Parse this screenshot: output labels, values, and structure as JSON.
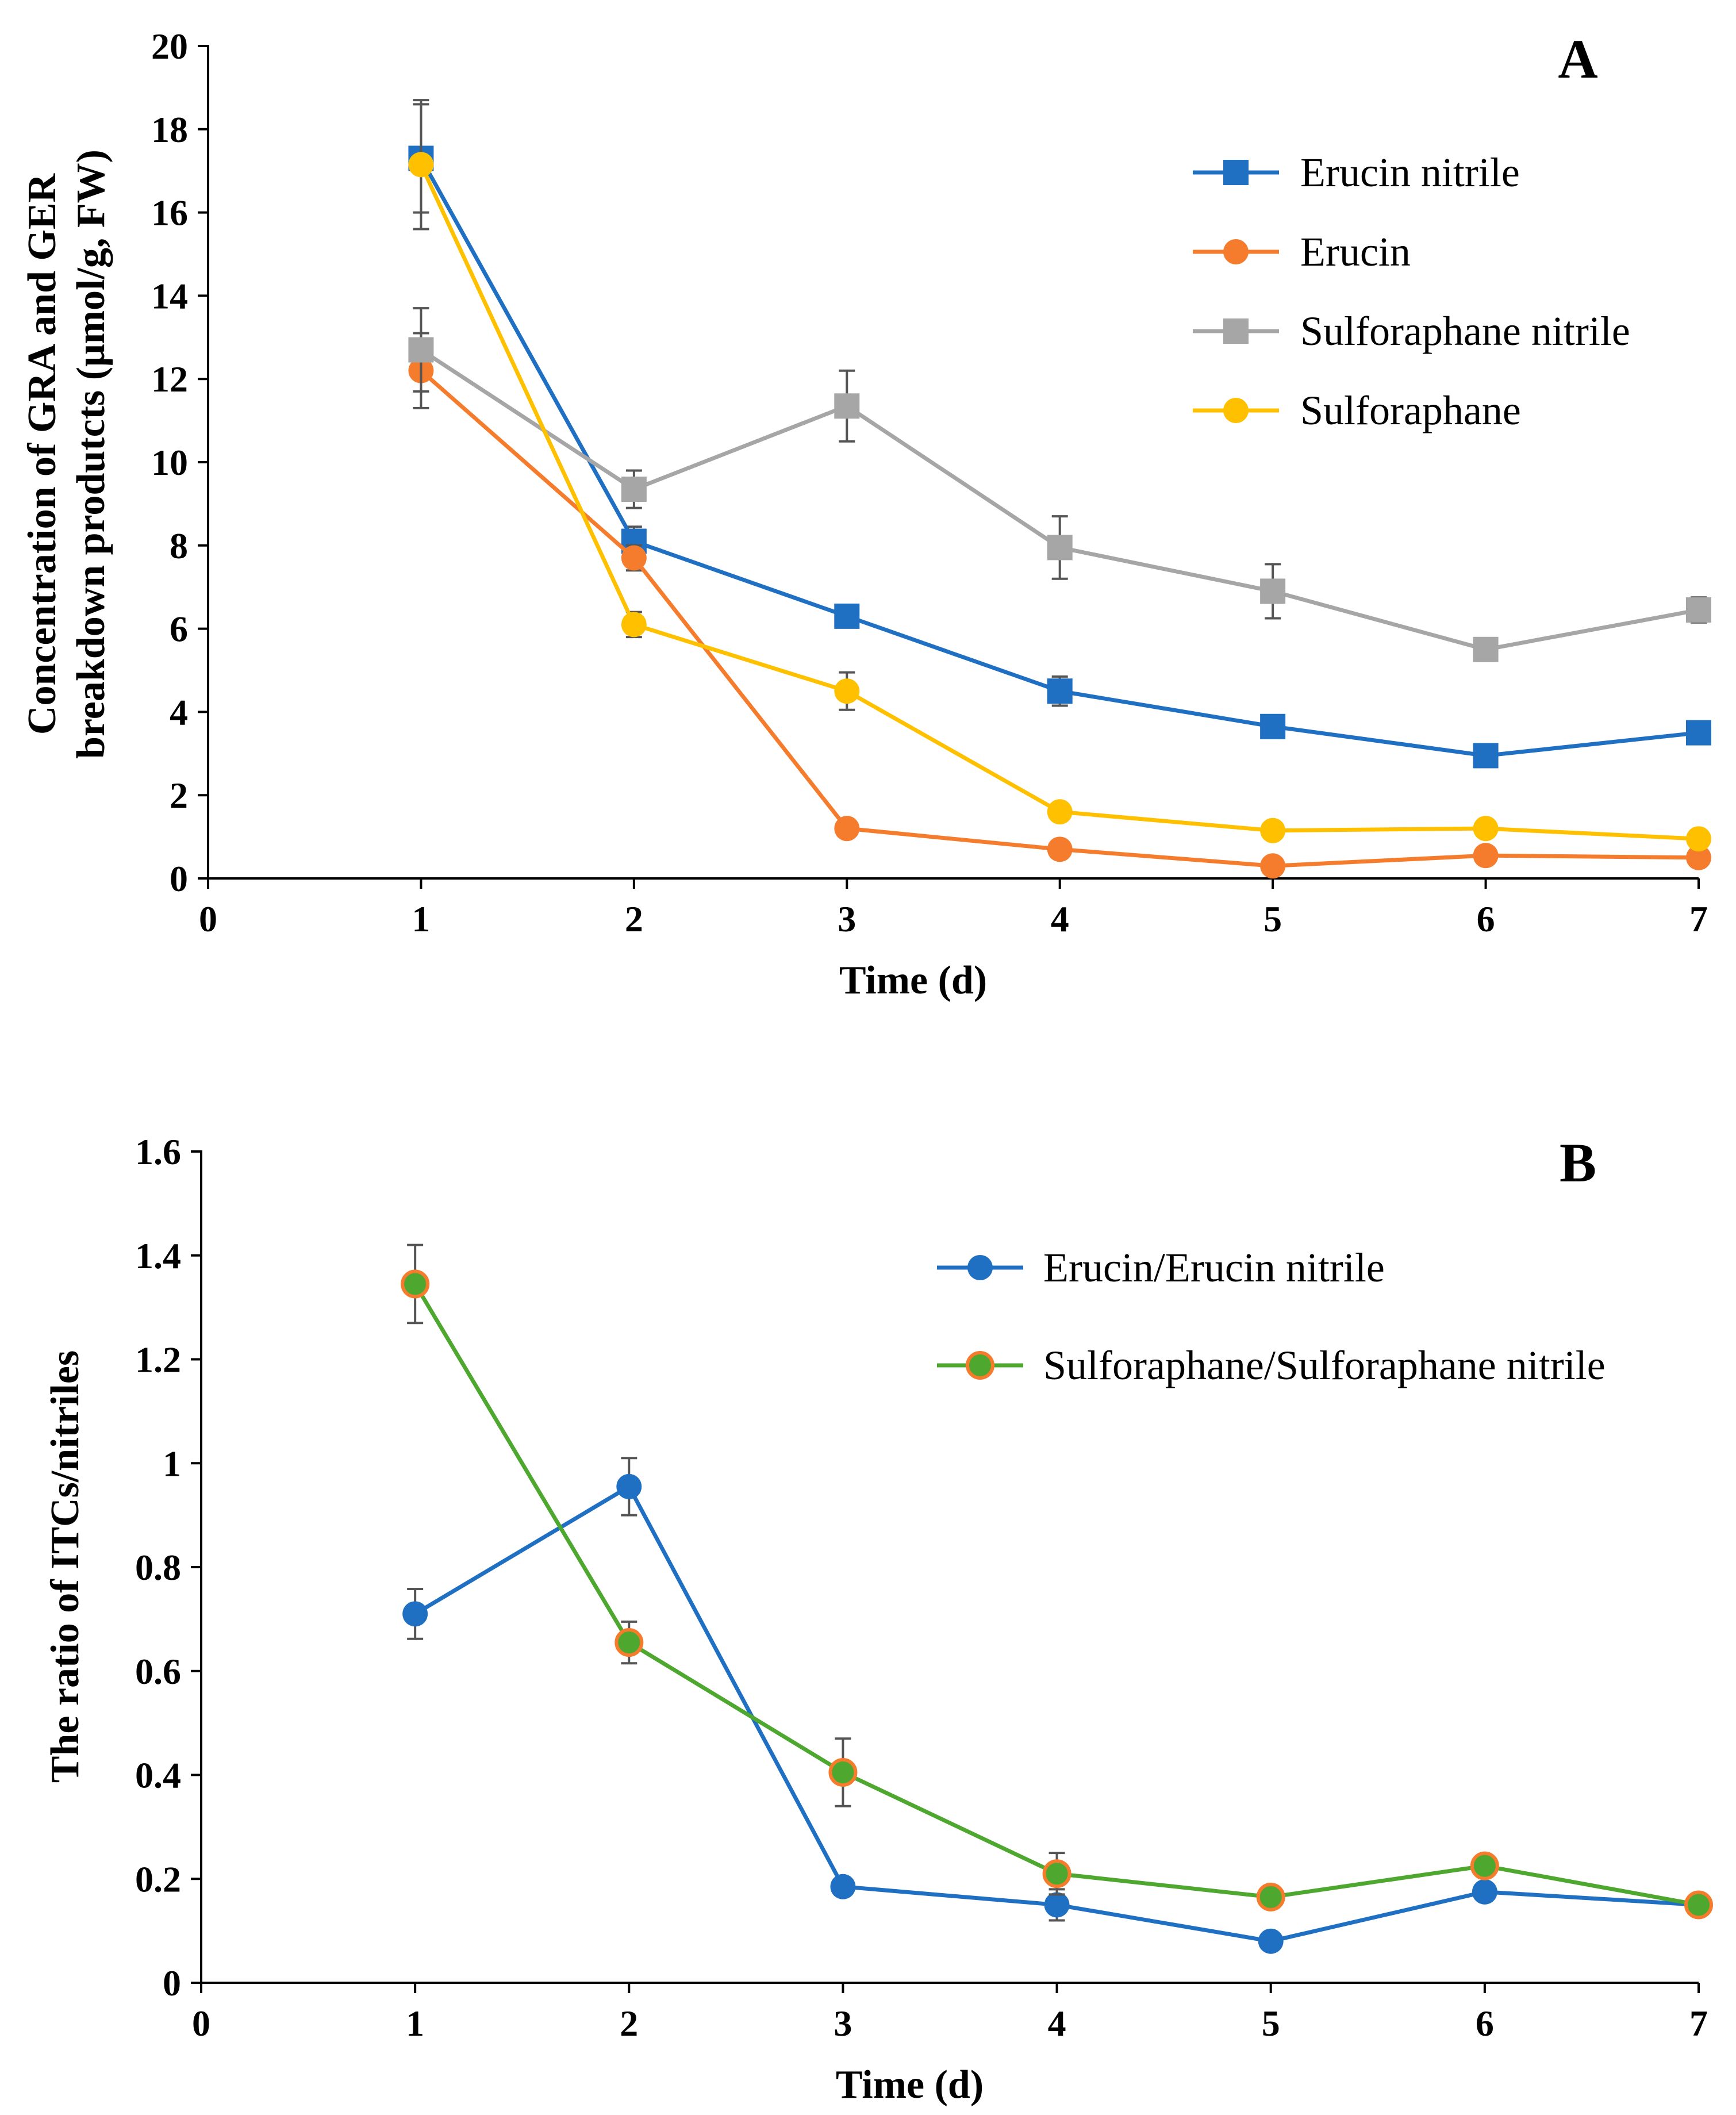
{
  "chart_data": [
    {
      "panel": "A",
      "type": "line",
      "xlabel": "Time (d)",
      "ylabel_lines": [
        "Concentration of GRA and GER",
        "breakdown produtcts (μmol/g, FW)"
      ],
      "xlim": [
        0,
        7
      ],
      "ylim": [
        0,
        20
      ],
      "xticks": [
        0,
        1,
        2,
        3,
        4,
        5,
        6,
        7
      ],
      "yticks": [
        0,
        2,
        4,
        6,
        8,
        10,
        12,
        14,
        16,
        18,
        20
      ],
      "legend_position": "top-right",
      "x": [
        1,
        2,
        3,
        4,
        5,
        6,
        7
      ],
      "series": [
        {
          "name": "Erucin nitrile",
          "marker": "square",
          "color": "#1f6fc2",
          "face": "#1f6fc2",
          "values": [
            17.3,
            8.1,
            6.3,
            4.5,
            3.65,
            2.95,
            3.5
          ],
          "errors": [
            1.3,
            0.35,
            0.2,
            0.35,
            0.2,
            0.15,
            0.25
          ]
        },
        {
          "name": "Erucin",
          "marker": "circle",
          "color": "#f47c2c",
          "face": "#f47c2c",
          "values": [
            12.2,
            7.7,
            1.2,
            0.7,
            0.3,
            0.55,
            0.5
          ],
          "errors": [
            0.9,
            0.3,
            0.1,
            0.1,
            0.05,
            0.05,
            0.05
          ]
        },
        {
          "name": "Sulforaphane nitrile",
          "marker": "square",
          "color": "#a6a6a6",
          "face": "#a6a6a6",
          "values": [
            12.7,
            9.35,
            11.35,
            7.95,
            6.9,
            5.5,
            6.45
          ],
          "errors": [
            1.0,
            0.45,
            0.85,
            0.75,
            0.65,
            0.15,
            0.3
          ]
        },
        {
          "name": "Sulforaphane",
          "marker": "circle",
          "color": "#ffc000",
          "face": "#ffc000",
          "values": [
            17.15,
            6.1,
            4.5,
            1.6,
            1.15,
            1.2,
            0.95
          ],
          "errors": [
            1.55,
            0.3,
            0.45,
            0.2,
            0.1,
            0.1,
            0.1
          ]
        }
      ]
    },
    {
      "panel": "B",
      "type": "line",
      "xlabel": "Time (d)",
      "ylabel_lines": [
        "The ratio of ITCs/nitriles"
      ],
      "xlim": [
        0,
        7
      ],
      "ylim": [
        0,
        1.6
      ],
      "xticks": [
        0,
        1,
        2,
        3,
        4,
        5,
        6,
        7
      ],
      "yticks": [
        0,
        0.2,
        0.4,
        0.6,
        0.8,
        1,
        1.2,
        1.4,
        1.6
      ],
      "legend_position": "top-right",
      "x": [
        1,
        2,
        3,
        4,
        5,
        6,
        7
      ],
      "series": [
        {
          "name": "Erucin/Erucin nitrile",
          "marker": "circle",
          "color": "#1f6fc2",
          "face": "#1f6fc2",
          "values": [
            0.71,
            0.955,
            0.185,
            0.15,
            0.08,
            0.175,
            0.15
          ],
          "errors": [
            0.048,
            0.055,
            0.01,
            0.03,
            0.005,
            0.01,
            0.02
          ]
        },
        {
          "name": "Sulforaphane/Sulforaphane nitrile",
          "marker": "circle",
          "color": "#4ea72e",
          "face": "#4ea72e",
          "edge": "#f47c2c",
          "values": [
            1.345,
            0.655,
            0.405,
            0.21,
            0.165,
            0.225,
            0.15
          ],
          "errors": [
            0.075,
            0.04,
            0.065,
            0.04,
            0.01,
            0.01,
            0.01
          ]
        }
      ]
    }
  ]
}
